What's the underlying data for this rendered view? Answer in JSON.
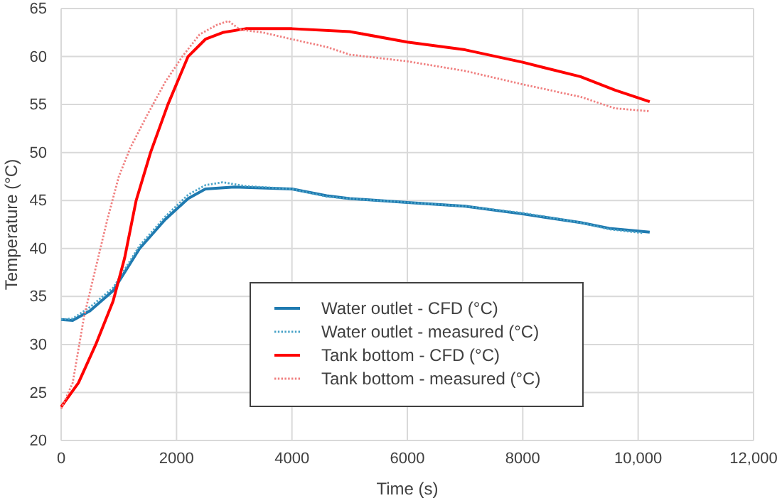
{
  "chart_data": {
    "type": "line",
    "xlabel": "Time (s)",
    "ylabel": "Temperature (°C)",
    "xlim": [
      0,
      12000
    ],
    "xticks": [
      0,
      2000,
      4000,
      6000,
      8000,
      {
        "value": 10000,
        "label": "10,000"
      },
      {
        "value": 12000,
        "label": "12,000"
      }
    ],
    "ylim": [
      20,
      65
    ],
    "yticks": [
      20,
      25,
      30,
      35,
      40,
      45,
      50,
      55,
      60,
      65
    ],
    "grid": true,
    "legend": "bottom",
    "marker": "none",
    "series": [
      {
        "name": "Water outlet - CFD (°C)",
        "color": "#1f7ab0",
        "line_style": "solid",
        "x": [
          0,
          200,
          500,
          900,
          1360,
          1800,
          2200,
          2500,
          3000,
          4000,
          4600,
          5000,
          6000,
          7000,
          8000,
          9000,
          9500,
          10200
        ],
        "values": [
          32.6,
          32.5,
          33.5,
          35.6,
          40,
          43,
          45.2,
          46.2,
          46.4,
          46.2,
          45.5,
          45.2,
          44.8,
          44.4,
          43.6,
          42.7,
          42.1,
          41.7
        ]
      },
      {
        "name": "Water outlet - measured (°C)",
        "color": "#4aa3c8",
        "line_style": "dotted",
        "x": [
          0,
          200,
          500,
          900,
          1360,
          1800,
          2200,
          2500,
          2800,
          3200,
          4000,
          4600,
          5000,
          6000,
          7000,
          8000,
          9000,
          9500,
          10100
        ],
        "values": [
          32.6,
          32.7,
          33.9,
          35.9,
          40.3,
          43.3,
          45.6,
          46.6,
          46.9,
          46.5,
          46.2,
          45.4,
          45.2,
          44.8,
          44.4,
          43.7,
          42.7,
          42.0,
          41.6
        ]
      },
      {
        "name": "Tank bottom - CFD (°C)",
        "color": "#ff0000",
        "line_style": "solid",
        "x": [
          0,
          300,
          600,
          900,
          1100,
          1300,
          1550,
          1850,
          2200,
          2500,
          2800,
          3200,
          4000,
          5000,
          6000,
          7000,
          8000,
          9000,
          9600,
          10200
        ],
        "values": [
          23.5,
          26,
          30,
          34.5,
          39,
          45,
          50,
          55,
          60,
          61.8,
          62.5,
          62.9,
          62.9,
          62.6,
          61.5,
          60.7,
          59.4,
          57.9,
          56.5,
          55.3
        ]
      },
      {
        "name": "Tank bottom - measured (°C)",
        "color": "#f08080",
        "line_style": "dotted",
        "x": [
          0,
          200,
          400,
          600,
          800,
          1000,
          1200,
          1500,
          1800,
          2100,
          2400,
          2700,
          2900,
          3100,
          3500,
          4000,
          4600,
          5000,
          6000,
          7000,
          8000,
          9000,
          9600,
          10200
        ],
        "values": [
          23.3,
          26,
          33,
          38,
          43,
          47.5,
          50.5,
          54,
          57.3,
          60,
          62.3,
          63.3,
          63.7,
          62.8,
          62.5,
          61.8,
          61,
          60.2,
          59.5,
          58.5,
          57.1,
          55.8,
          54.6,
          54.3
        ]
      }
    ]
  }
}
